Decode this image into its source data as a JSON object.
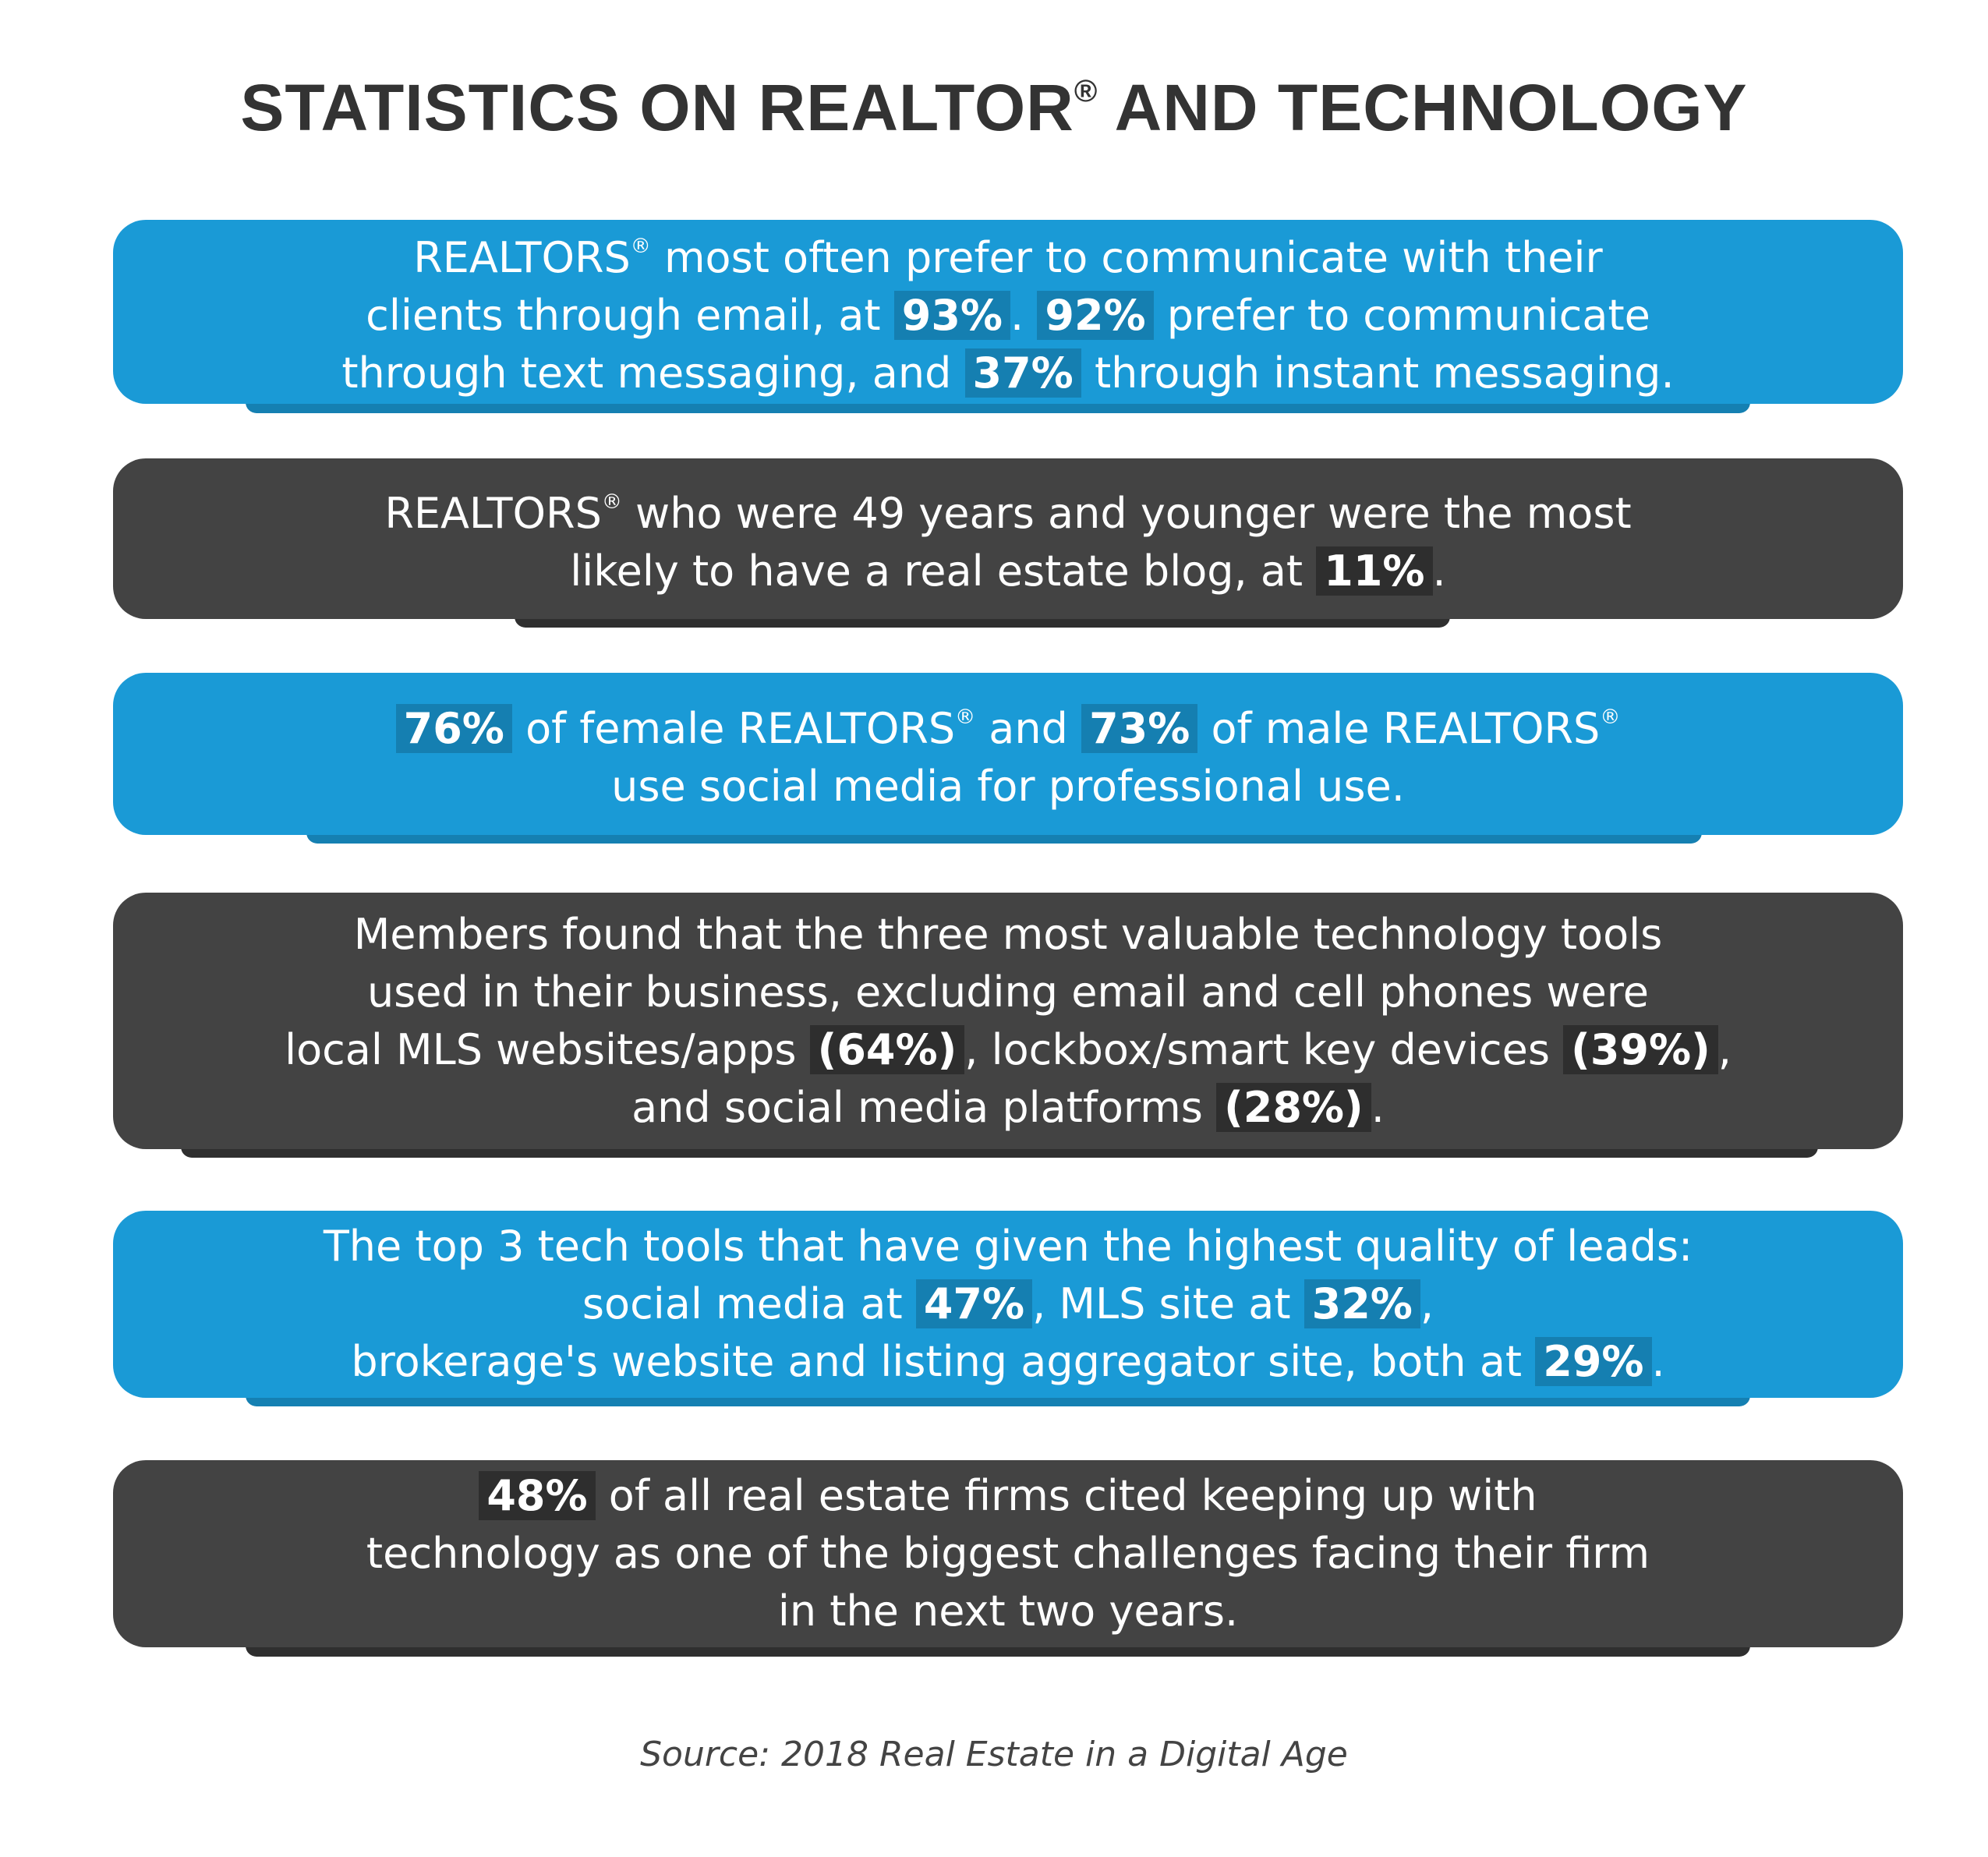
{
  "title": {
    "main": "STATISTICS ON REALTOR",
    "reg": "®",
    "rest": " AND TECHNOLOGY"
  },
  "cards": [
    {
      "lines": [
        [
          {
            "t": "REALTORS"
          },
          {
            "reg": "®"
          },
          {
            "t": " most often prefer to communicate with their"
          }
        ],
        [
          {
            "t": "clients through email, at "
          },
          {
            "b": "93%"
          },
          {
            "t": ". "
          },
          {
            "b": "92%"
          },
          {
            "t": " prefer to communicate"
          }
        ],
        [
          {
            "t": "through text messaging, and "
          },
          {
            "b": "37%"
          },
          {
            "t": " through instant messaging."
          }
        ]
      ]
    },
    {
      "lines": [
        [
          {
            "t": "REALTORS"
          },
          {
            "reg": "®"
          },
          {
            "t": " who were 49 years and younger were the most"
          }
        ],
        [
          {
            "t": "likely to have a real estate blog, at "
          },
          {
            "b": "11%"
          },
          {
            "t": "."
          }
        ]
      ]
    },
    {
      "lines": [
        [
          {
            "b": "76%"
          },
          {
            "t": " of female REALTORS"
          },
          {
            "reg": "®"
          },
          {
            "t": " and "
          },
          {
            "b": "73%"
          },
          {
            "t": " of male REALTORS"
          },
          {
            "reg": "®"
          }
        ],
        [
          {
            "t": "use social media for professional use."
          }
        ]
      ]
    },
    {
      "lines": [
        [
          {
            "t": "Members found that the three most valuable technology tools"
          }
        ],
        [
          {
            "t": "used in their business, excluding email and cell phones were"
          }
        ],
        [
          {
            "t": "local MLS websites/apps "
          },
          {
            "b": "(64%)"
          },
          {
            "t": ", lockbox/smart key devices "
          },
          {
            "b": "(39%)"
          },
          {
            "t": ","
          }
        ],
        [
          {
            "t": "and social media platforms "
          },
          {
            "b": "(28%)"
          },
          {
            "t": "."
          }
        ]
      ]
    },
    {
      "lines": [
        [
          {
            "t": "The top 3 tech tools that have given the highest quality of leads:"
          }
        ],
        [
          {
            "t": "social media at "
          },
          {
            "b": "47%"
          },
          {
            "t": ", MLS site at "
          },
          {
            "b": "32%"
          },
          {
            "t": ","
          }
        ],
        [
          {
            "t": "brokerage's website and listing aggregator site, both at "
          },
          {
            "b": "29%"
          },
          {
            "t": "."
          }
        ]
      ]
    },
    {
      "lines": [
        [
          {
            "b": "48%"
          },
          {
            "t": " of all real estate firms cited keeping up with"
          }
        ],
        [
          {
            "t": "technology as one of the biggest challenges facing their firm"
          }
        ],
        [
          {
            "t": "in the next two years."
          }
        ]
      ]
    }
  ],
  "source": "Source: 2018 Real Estate in a Digital Age",
  "colors": {
    "blue": "#1a9ad6",
    "dark": "#434343",
    "title": "#333333"
  }
}
